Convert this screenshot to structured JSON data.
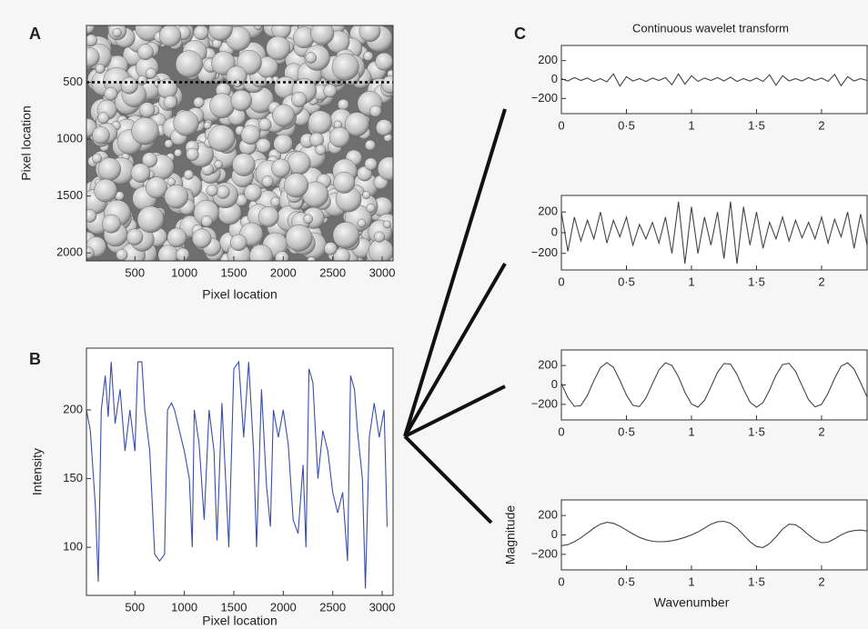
{
  "chart_data": [
    {
      "type": "image",
      "panel_label": "A",
      "xlabel": "Pixel location",
      "ylabel": "Pixel location",
      "xlim": [
        10,
        3110
      ],
      "xticks": [
        500,
        1000,
        1500,
        2000,
        2500,
        3000
      ],
      "ylim": [
        2070,
        0
      ],
      "yticks": [
        500,
        1000,
        1500,
        2000
      ],
      "line_y": 500
    },
    {
      "type": "line",
      "panel_label": "B",
      "xlabel": "Pixel location",
      "ylabel": "Intensity",
      "color": "#3a4fa8",
      "xlim": [
        10,
        3110
      ],
      "xticks": [
        500,
        1000,
        1500,
        2000,
        2500,
        3000
      ],
      "ylim": [
        65,
        245
      ],
      "yticks": [
        100,
        150,
        200
      ],
      "x": [
        10,
        50,
        100,
        130,
        160,
        200,
        230,
        260,
        300,
        350,
        400,
        450,
        500,
        530,
        570,
        600,
        650,
        700,
        750,
        800,
        830,
        870,
        900,
        950,
        1000,
        1050,
        1080,
        1100,
        1150,
        1200,
        1250,
        1300,
        1330,
        1380,
        1420,
        1450,
        1500,
        1550,
        1600,
        1650,
        1700,
        1730,
        1780,
        1830,
        1870,
        1900,
        1950,
        2000,
        2050,
        2100,
        2150,
        2200,
        2230,
        2260,
        2300,
        2350,
        2400,
        2450,
        2500,
        2550,
        2600,
        2650,
        2680,
        2720,
        2750,
        2800,
        2830,
        2870,
        2920,
        2970,
        3020,
        3050
      ],
      "values": [
        200,
        185,
        130,
        75,
        200,
        225,
        195,
        235,
        190,
        215,
        170,
        200,
        170,
        235,
        235,
        200,
        170,
        95,
        90,
        95,
        200,
        205,
        200,
        185,
        170,
        150,
        100,
        200,
        175,
        120,
        200,
        170,
        105,
        205,
        145,
        100,
        230,
        235,
        180,
        235,
        170,
        100,
        215,
        145,
        115,
        200,
        180,
        200,
        175,
        120,
        110,
        160,
        100,
        230,
        220,
        150,
        185,
        170,
        140,
        125,
        140,
        90,
        225,
        215,
        185,
        150,
        70,
        180,
        205,
        180,
        200,
        115
      ]
    },
    {
      "type": "line",
      "panel_label": "C",
      "title": "Continuous wavelet transform",
      "color": "#444444",
      "xlim": [
        0,
        2.35
      ],
      "xticks": [
        0,
        {
          "value": 0.5,
          "label": "0·5"
        },
        1,
        {
          "value": 1.5,
          "label": "1·5"
        },
        2
      ],
      "ylim": [
        -360,
        360
      ],
      "yticks": [
        {
          "value": -200,
          "label": "−200"
        },
        0,
        200
      ],
      "x": [
        0,
        0.05,
        0.1,
        0.15,
        0.2,
        0.25,
        0.3,
        0.35,
        0.4,
        0.45,
        0.5,
        0.55,
        0.6,
        0.65,
        0.7,
        0.75,
        0.8,
        0.85,
        0.9,
        0.95,
        1,
        1.05,
        1.1,
        1.15,
        1.2,
        1.25,
        1.3,
        1.35,
        1.4,
        1.45,
        1.5,
        1.55,
        1.6,
        1.65,
        1.7,
        1.75,
        1.8,
        1.85,
        1.9,
        1.95,
        2,
        2.05,
        2.1,
        2.15,
        2.2,
        2.25,
        2.3,
        2.35
      ],
      "values": [
        10,
        -15,
        20,
        -10,
        15,
        -20,
        10,
        -25,
        60,
        -70,
        30,
        -15,
        10,
        -20,
        15,
        -10,
        20,
        -55,
        60,
        -50,
        40,
        -20,
        15,
        -10,
        20,
        -15,
        25,
        -20,
        10,
        -15,
        15,
        -20,
        50,
        -60,
        40,
        -15,
        10,
        -15,
        20,
        -10,
        15,
        -20,
        55,
        -65,
        30,
        -15,
        10,
        -10
      ]
    },
    {
      "type": "line",
      "color": "#444444",
      "xlim": [
        0,
        2.35
      ],
      "xticks": [
        0,
        {
          "value": 0.5,
          "label": "0·5"
        },
        1,
        {
          "value": 1.5,
          "label": "1·5"
        },
        2
      ],
      "ylim": [
        -360,
        360
      ],
      "yticks": [
        {
          "value": -200,
          "label": "−200"
        },
        0,
        200
      ],
      "x": [
        0,
        0.05,
        0.1,
        0.15,
        0.2,
        0.25,
        0.3,
        0.35,
        0.4,
        0.45,
        0.5,
        0.55,
        0.6,
        0.65,
        0.7,
        0.75,
        0.8,
        0.85,
        0.9,
        0.95,
        1,
        1.05,
        1.1,
        1.15,
        1.2,
        1.25,
        1.3,
        1.35,
        1.4,
        1.45,
        1.5,
        1.55,
        1.6,
        1.65,
        1.7,
        1.75,
        1.8,
        1.85,
        1.9,
        1.95,
        2,
        2.05,
        2.1,
        2.15,
        2.2,
        2.25,
        2.3,
        2.35
      ],
      "values": [
        200,
        -180,
        150,
        -80,
        120,
        -60,
        200,
        -100,
        120,
        -40,
        150,
        -120,
        80,
        -60,
        100,
        -100,
        150,
        -200,
        300,
        -300,
        250,
        -200,
        150,
        -120,
        200,
        -250,
        300,
        -300,
        250,
        -120,
        200,
        -150,
        100,
        -60,
        150,
        -80,
        120,
        -50,
        100,
        -60,
        150,
        -100,
        130,
        -40,
        200,
        -150,
        180,
        -120
      ]
    },
    {
      "type": "line",
      "color": "#444444",
      "xlim": [
        0,
        2.35
      ],
      "xticks": [
        0,
        {
          "value": 0.5,
          "label": "0·5"
        },
        1,
        {
          "value": 1.5,
          "label": "1·5"
        },
        2
      ],
      "ylim": [
        -360,
        360
      ],
      "yticks": [
        {
          "value": -200,
          "label": "−200"
        },
        0,
        200
      ],
      "x": [
        0,
        0.05,
        0.1,
        0.15,
        0.2,
        0.25,
        0.3,
        0.35,
        0.4,
        0.45,
        0.5,
        0.55,
        0.6,
        0.65,
        0.7,
        0.75,
        0.8,
        0.85,
        0.9,
        0.95,
        1,
        1.05,
        1.1,
        1.15,
        1.2,
        1.25,
        1.3,
        1.35,
        1.4,
        1.45,
        1.5,
        1.55,
        1.6,
        1.65,
        1.7,
        1.75,
        1.8,
        1.85,
        1.9,
        1.95,
        2,
        2.05,
        2.1,
        2.15,
        2.2,
        2.25,
        2.3,
        2.35
      ],
      "values": [
        16,
        -131,
        -221,
        -212,
        -108,
        44,
        177,
        230,
        182,
        48,
        -104,
        -209,
        -223,
        -136,
        12,
        154,
        228,
        200,
        83,
        -76,
        -196,
        -228,
        -159,
        -21,
        129,
        221,
        214,
        108,
        -44,
        -177,
        -230,
        -182,
        -51,
        101,
        209,
        223,
        138,
        -7,
        -152,
        -225,
        -200,
        -85,
        67,
        193,
        228,
        163,
        23,
        -124
      ]
    },
    {
      "type": "line",
      "xlabel": "Wavenumber",
      "ylabel": "Magnitude",
      "color": "#444444",
      "xlim": [
        0,
        2.35
      ],
      "xticks": [
        0,
        {
          "value": 0.5,
          "label": "0·5"
        },
        1,
        {
          "value": 1.5,
          "label": "1·5"
        },
        2
      ],
      "ylim": [
        -360,
        360
      ],
      "yticks": [
        {
          "value": -200,
          "label": "−200"
        },
        0,
        200
      ],
      "x": [
        0,
        0.05,
        0.1,
        0.15,
        0.2,
        0.25,
        0.3,
        0.35,
        0.4,
        0.45,
        0.5,
        0.55,
        0.6,
        0.65,
        0.7,
        0.75,
        0.8,
        0.85,
        0.9,
        0.95,
        1,
        1.05,
        1.1,
        1.15,
        1.2,
        1.25,
        1.3,
        1.35,
        1.4,
        1.45,
        1.5,
        1.55,
        1.6,
        1.65,
        1.7,
        1.75,
        1.8,
        1.85,
        1.9,
        1.95,
        2,
        2.05,
        2.1,
        2.15,
        2.2,
        2.25,
        2.3,
        2.35
      ],
      "values": [
        -110,
        -100,
        -70,
        -30,
        20,
        70,
        110,
        130,
        120,
        90,
        50,
        10,
        -25,
        -50,
        -65,
        -70,
        -68,
        -60,
        -45,
        -25,
        0,
        30,
        70,
        110,
        135,
        140,
        120,
        70,
        0,
        -70,
        -120,
        -130,
        -90,
        -20,
        60,
        110,
        105,
        60,
        0,
        -50,
        -80,
        -75,
        -40,
        0,
        30,
        45,
        50,
        40
      ]
    }
  ]
}
